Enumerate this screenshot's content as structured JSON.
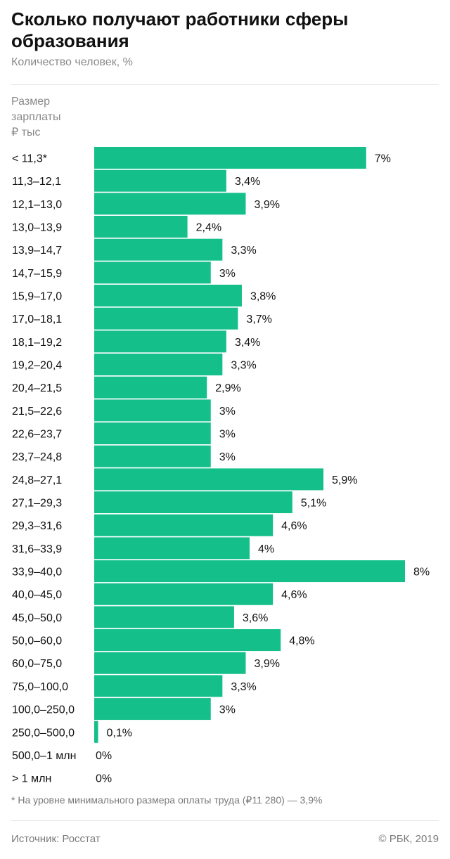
{
  "header": {
    "title": "Сколько получают работники сферы образования",
    "subtitle": "Количество человек, %"
  },
  "chart_data": {
    "type": "bar",
    "orientation": "horizontal",
    "title": "Сколько получают работники сферы образования",
    "subtitle": "Количество человек, %",
    "category_header": [
      "Размер",
      "зарплаты",
      "₽ тыс"
    ],
    "categories": [
      "< 11,3*",
      "11,3–12,1",
      "12,1–13,0",
      "13,0–13,9",
      "13,9–14,7",
      "14,7–15,9",
      "15,9–17,0",
      "17,0–18,1",
      "18,1–19,2",
      "19,2–20,4",
      "20,4–21,5",
      "21,5–22,6",
      "22,6–23,7",
      "23,7–24,8",
      "24,8–27,1",
      "27,1–29,3",
      "29,3–31,6",
      "31,6–33,9",
      "33,9–40,0",
      "40,0–45,0",
      "45,0–50,0",
      "50,0–60,0",
      "60,0–75,0",
      "75,0–100,0",
      "100,0–250,0",
      "250,0–500,0",
      "500,0–1 млн",
      "> 1 млн"
    ],
    "values": [
      7,
      3.4,
      3.9,
      2.4,
      3.3,
      3,
      3.8,
      3.7,
      3.4,
      3.3,
      2.9,
      3,
      3,
      3,
      5.9,
      5.1,
      4.6,
      4,
      8,
      4.6,
      3.6,
      4.8,
      3.9,
      3.3,
      3,
      0.1,
      0,
      0
    ],
    "value_labels": [
      "7%",
      "3,4%",
      "3,9%",
      "2,4%",
      "3,3%",
      "3%",
      "3,8%",
      "3,7%",
      "3,4%",
      "3,3%",
      "2,9%",
      "3%",
      "3%",
      "3%",
      "5,9%",
      "5,1%",
      "4,6%",
      "4%",
      "8%",
      "4,6%",
      "3,6%",
      "4,8%",
      "3,9%",
      "3,3%",
      "3%",
      "0,1%",
      "0%",
      "0%"
    ],
    "bar_color": "#14bf8a",
    "xlim": [
      0,
      8
    ],
    "grid": false,
    "legend": "none"
  },
  "footer": {
    "footnote": "* На уровне минимального размера оплаты труда (₽11 280) — 3,9%",
    "source": "Источник: Росстат",
    "copyright": "© РБК, 2019"
  }
}
